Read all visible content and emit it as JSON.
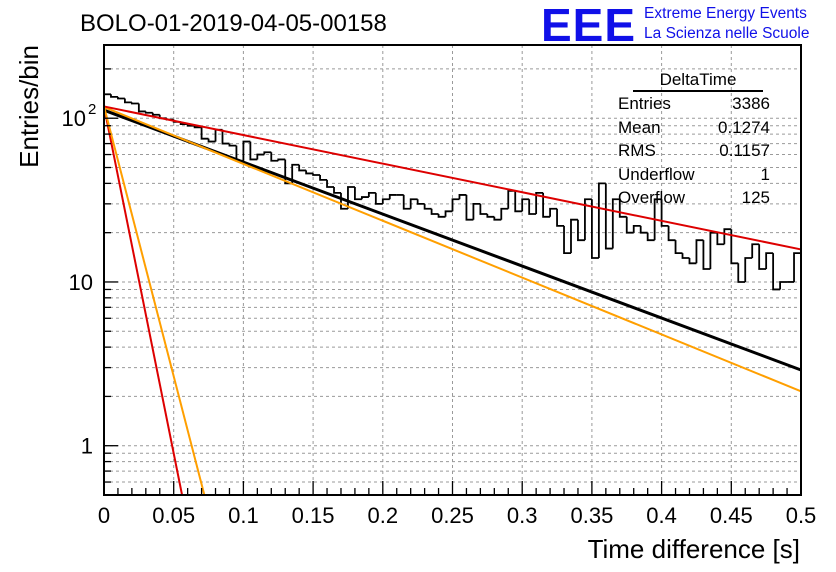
{
  "header": {
    "title": "BOLO-01-2019-04-05-00158",
    "logo_mark": "EEE",
    "logo_line1": "Extreme Energy Events",
    "logo_line2": "La Scienza nelle Scuole"
  },
  "stats": {
    "name": "DeltaTime",
    "rows": [
      {
        "label": "Entries",
        "value": "3386"
      },
      {
        "label": "Mean",
        "value": "0.1274"
      },
      {
        "label": "RMS",
        "value": "0.1157"
      },
      {
        "label": "Underflow",
        "value": "1"
      },
      {
        "label": "Overflow",
        "value": "125"
      }
    ]
  },
  "chart_data": {
    "type": "line",
    "xlabel": "Time difference [s]",
    "ylabel": "Entries/bin",
    "xlim": [
      0,
      0.5
    ],
    "ylim": [
      0.5,
      280
    ],
    "yscale": "log",
    "grid": true,
    "x_ticks": [
      "0",
      "0.05",
      "0.1",
      "0.15",
      "0.2",
      "0.25",
      "0.3",
      "0.35",
      "0.4",
      "0.45",
      "0.5"
    ],
    "y_ticks": [
      {
        "value": 1,
        "label": "1"
      },
      {
        "value": 10,
        "label": "10"
      },
      {
        "value": 100,
        "label": "10",
        "exponent": "2"
      }
    ],
    "histogram": {
      "bin_width": 0.005,
      "values": [
        140,
        135,
        132,
        125,
        123,
        110,
        108,
        105,
        100,
        98,
        95,
        92,
        90,
        88,
        75,
        72,
        85,
        70,
        68,
        55,
        72,
        56,
        60,
        62,
        55,
        56,
        40,
        52,
        48,
        46,
        45,
        42,
        38,
        35,
        28,
        38,
        32,
        33,
        35,
        30,
        32,
        34,
        34,
        28,
        32,
        30,
        28,
        26,
        25,
        27,
        32,
        34,
        24,
        30,
        26,
        25,
        24,
        28,
        36,
        27,
        32,
        26,
        35,
        25,
        28,
        22,
        15,
        24,
        18,
        32,
        14,
        40,
        16,
        32,
        25,
        20,
        22,
        20,
        18,
        32,
        22,
        18,
        15,
        14,
        13,
        18,
        12,
        20,
        17,
        21,
        13,
        10,
        14,
        17,
        12,
        15,
        9,
        10,
        10,
        15,
        11,
        9,
        8,
        12,
        7,
        11,
        10,
        6,
        12,
        8,
        8,
        9,
        9,
        7,
        9,
        5,
        6,
        5,
        7,
        10,
        6,
        9,
        6,
        6,
        4,
        5,
        4,
        4,
        5,
        4,
        9,
        3,
        5,
        3,
        4,
        3,
        6,
        0.3,
        6,
        2,
        0.3,
        3,
        3,
        4.5
      ]
    },
    "series": [
      {
        "color": "#000000",
        "x": [
          0,
          0.5
        ],
        "y": [
          112,
          2.9
        ]
      },
      {
        "color": "#ff9f00",
        "x": [
          0,
          0.5
        ],
        "y": [
          117,
          2.15
        ]
      },
      {
        "color": "#dd0000",
        "x": [
          0,
          0.5
        ],
        "y": [
          118,
          15.8
        ]
      },
      {
        "color": "#dd0000",
        "x": [
          0,
          0.056
        ],
        "y": [
          118,
          0.5
        ]
      },
      {
        "color": "#ff9f00",
        "x": [
          0,
          0.072
        ],
        "y": [
          118,
          0.5
        ]
      }
    ]
  }
}
